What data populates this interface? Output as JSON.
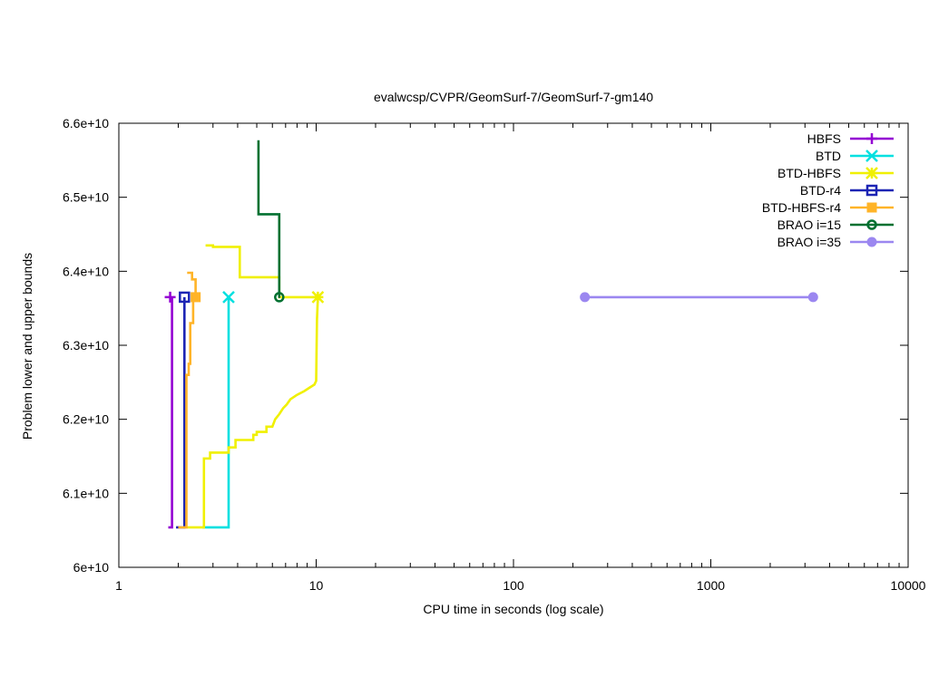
{
  "chart_data": {
    "type": "line",
    "title": "evalwcsp/CVPR/GeomSurf-7/GeomSurf-7-gm140",
    "xlabel": "CPU time in seconds (log scale)",
    "ylabel": "Problem lower and upper bounds",
    "xscale": "log",
    "xlim": [
      1,
      10000
    ],
    "ylim": [
      60000000000,
      66000000000
    ],
    "grid": false,
    "legend_position": "top-right",
    "x_ticks": [
      {
        "value": 1,
        "label": "1"
      },
      {
        "value": 10,
        "label": "10"
      },
      {
        "value": 100,
        "label": "100"
      },
      {
        "value": 1000,
        "label": "1000"
      },
      {
        "value": 10000,
        "label": "10000"
      }
    ],
    "y_ticks": [
      {
        "value": 60000000000,
        "label": "6e+10"
      },
      {
        "value": 61000000000,
        "label": "6.1e+10"
      },
      {
        "value": 62000000000,
        "label": "6.2e+10"
      },
      {
        "value": 63000000000,
        "label": "6.3e+10"
      },
      {
        "value": 64000000000,
        "label": "6.4e+10"
      },
      {
        "value": 65000000000,
        "label": "6.5e+10"
      },
      {
        "value": 66000000000,
        "label": "6.6e+10"
      }
    ],
    "series": [
      {
        "name": "HBFS",
        "color": "#9400d3",
        "marker": "plus",
        "segments": [
          {
            "kind": "upper",
            "points": [
              [
                1.82,
                63650000000
              ]
            ]
          },
          {
            "kind": "lower",
            "points": [
              [
                1.78,
                60540000000
              ],
              [
                1.86,
                60540000000
              ],
              [
                1.86,
                63650000000
              ]
            ]
          }
        ],
        "markers": [
          [
            1.82,
            63650000000
          ]
        ]
      },
      {
        "name": "BTD",
        "color": "#00e0e0",
        "marker": "x",
        "segments": [
          {
            "kind": "upper",
            "points": [
              [
                3.6,
                63650000000
              ]
            ]
          },
          {
            "kind": "lower",
            "points": [
              [
                2.65,
                60540000000
              ],
              [
                3.6,
                60540000000
              ],
              [
                3.6,
                63650000000
              ]
            ]
          }
        ],
        "markers": [
          [
            3.6,
            63650000000
          ]
        ]
      },
      {
        "name": "BTD-HBFS",
        "color": "#f0f000",
        "marker": "star",
        "segments": [
          {
            "kind": "upper",
            "points": [
              [
                2.75,
                64350000000
              ],
              [
                3.0,
                64350000000
              ],
              [
                3.0,
                64330000000
              ],
              [
                4.1,
                64330000000
              ],
              [
                4.1,
                63920000000
              ],
              [
                6.5,
                63920000000
              ],
              [
                6.5,
                63650000000
              ],
              [
                10.2,
                63650000000
              ]
            ]
          },
          {
            "kind": "lower",
            "points": [
              [
                2.2,
                60540000000
              ],
              [
                2.7,
                60540000000
              ],
              [
                2.7,
                61470000000
              ],
              [
                2.9,
                61470000000
              ],
              [
                2.9,
                61550000000
              ],
              [
                3.6,
                61550000000
              ],
              [
                3.6,
                61620000000
              ],
              [
                3.9,
                61620000000
              ],
              [
                3.9,
                61720000000
              ],
              [
                4.8,
                61720000000
              ],
              [
                4.8,
                61790000000
              ],
              [
                5.0,
                61790000000
              ],
              [
                5.0,
                61830000000
              ],
              [
                5.6,
                61830000000
              ],
              [
                5.6,
                61900000000
              ],
              [
                6.0,
                61900000000
              ],
              [
                6.2,
                62000000000
              ],
              [
                6.5,
                62070000000
              ],
              [
                6.8,
                62150000000
              ],
              [
                7.1,
                62200000000
              ],
              [
                7.4,
                62270000000
              ],
              [
                8.0,
                62330000000
              ],
              [
                8.7,
                62380000000
              ],
              [
                9.3,
                62430000000
              ],
              [
                9.8,
                62470000000
              ],
              [
                10.0,
                62520000000
              ],
              [
                10.05,
                63000000000
              ],
              [
                10.1,
                63350000000
              ],
              [
                10.2,
                63650000000
              ]
            ]
          }
        ],
        "markers": [
          [
            10.2,
            63650000000
          ]
        ]
      },
      {
        "name": "BTD-r4",
        "color": "#1c24b4",
        "marker": "open-square",
        "segments": [
          {
            "kind": "upper",
            "points": [
              [
                2.15,
                63650000000
              ]
            ]
          },
          {
            "kind": "lower",
            "points": [
              [
                1.95,
                60540000000
              ],
              [
                2.15,
                60540000000
              ],
              [
                2.15,
                63650000000
              ]
            ]
          }
        ],
        "markers": [
          [
            2.15,
            63650000000
          ]
        ]
      },
      {
        "name": "BTD-HBFS-r4",
        "color": "#ffb428",
        "marker": "filled-square",
        "segments": [
          {
            "kind": "upper",
            "points": [
              [
                2.22,
                63980000000
              ],
              [
                2.35,
                63980000000
              ],
              [
                2.35,
                63890000000
              ],
              [
                2.45,
                63890000000
              ],
              [
                2.45,
                63650000000
              ]
            ]
          },
          {
            "kind": "lower",
            "points": [
              [
                2.0,
                60540000000
              ],
              [
                2.2,
                60540000000
              ],
              [
                2.2,
                62600000000
              ],
              [
                2.26,
                62600000000
              ],
              [
                2.26,
                62750000000
              ],
              [
                2.3,
                62750000000
              ],
              [
                2.3,
                63300000000
              ],
              [
                2.38,
                63300000000
              ],
              [
                2.38,
                63650000000
              ],
              [
                2.45,
                63650000000
              ]
            ]
          }
        ],
        "markers": [
          [
            2.45,
            63650000000
          ]
        ]
      },
      {
        "name": "BRAO i=15",
        "color": "#007030",
        "marker": "open-circle-dot",
        "segments": [
          {
            "kind": "upper",
            "points": [
              [
                5.1,
                65770000000
              ],
              [
                5.1,
                64770000000
              ],
              [
                6.5,
                64770000000
              ],
              [
                6.5,
                63650000000
              ]
            ]
          }
        ],
        "markers": [
          [
            6.5,
            63650000000
          ]
        ]
      },
      {
        "name": "BRAO i=35",
        "color": "#9b87f0",
        "marker": "filled-circle",
        "segments": [
          {
            "kind": "upper",
            "points": [
              [
                230,
                63650000000
              ],
              [
                3300,
                63650000000
              ]
            ]
          }
        ],
        "markers": [
          [
            230,
            63650000000
          ],
          [
            3300,
            63650000000
          ]
        ]
      }
    ]
  }
}
